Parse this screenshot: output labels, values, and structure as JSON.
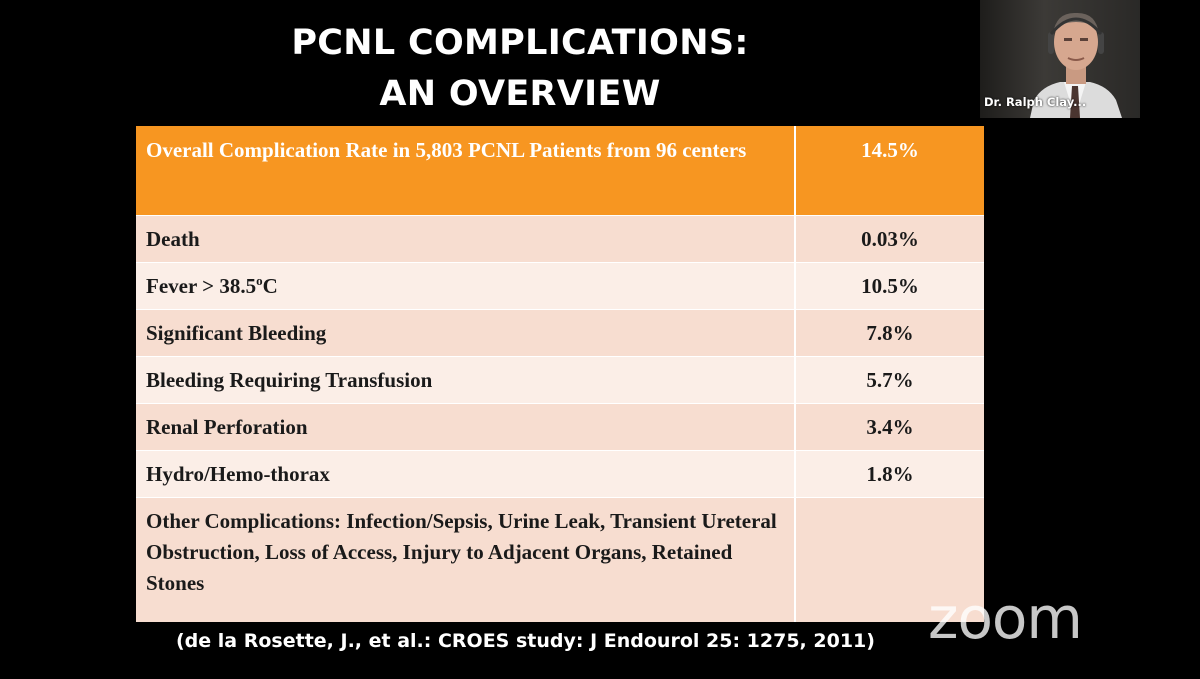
{
  "slide": {
    "title_line1": "PCNL COMPLICATIONS:",
    "title_line2": "AN OVERVIEW",
    "citation": "(de la Rosette, J., et al.: CROES study: J Endourol 25: 1275, 2011)"
  },
  "table": {
    "header": {
      "label": "Overall Complication Rate in 5,803 PCNL Patients from 96 centers",
      "value": "14.5%"
    },
    "rows": [
      {
        "label": "Death",
        "value": "0.03%"
      },
      {
        "label": "Fever > 38.5",
        "label_sup": "o",
        "label_suffix": "C",
        "value": "10.5%"
      },
      {
        "label": "Significant Bleeding",
        "value": "7.8%"
      },
      {
        "label": "Bleeding Requiring Transfusion",
        "value": "5.7%"
      },
      {
        "label": "Renal Perforation",
        "value": "3.4%"
      },
      {
        "label": "Hydro/Hemo-thorax",
        "value": "1.8%"
      },
      {
        "label": "Other Complications: Infection/Sepsis, Urine Leak, Transient Ureteral Obstruction, Loss of Access, Injury to Adjacent Organs, Retained Stones",
        "value": ""
      }
    ]
  },
  "video": {
    "participant_name": "Dr. Ralph Clay..."
  },
  "watermark": {
    "brand": "zoom"
  },
  "colors": {
    "header_orange": "#f79621",
    "row_dark": "#f7ddd0",
    "row_light": "#fbeee7",
    "background": "#000000"
  }
}
